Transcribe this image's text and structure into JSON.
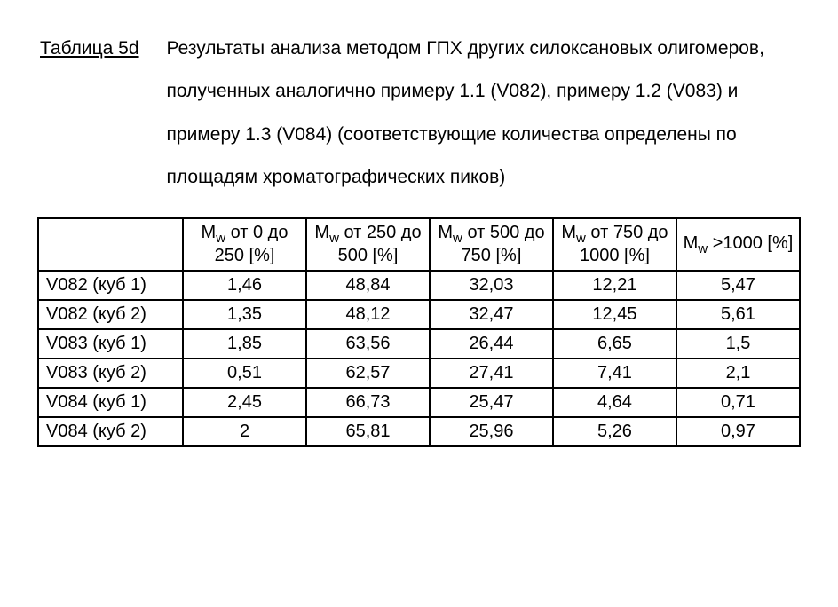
{
  "heading": {
    "label": "Таблица 5d",
    "text": "Результаты анализа методом ГПХ других силоксановых олигомеров, полученных аналогично примеру 1.1 (V082), примеру 1.2 (V083) и примеру 1.3 (V084) (соответствующие количества определены по площадям хроматографических пиков)"
  },
  "table": {
    "type": "table",
    "background_color": "#ffffff",
    "border_color": "#000000",
    "font_size_pt": 15,
    "columns": [
      {
        "key": "sample",
        "header_html": ""
      },
      {
        "key": "mw_0_250",
        "header_html": "M<sub>w</sub> от 0 до 250 [%]"
      },
      {
        "key": "mw_250_500",
        "header_html": "M<sub>w</sub> от 250 до 500 [%]"
      },
      {
        "key": "mw_500_750",
        "header_html": "M<sub>w</sub> от 500 до 750 [%]"
      },
      {
        "key": "mw_750_1000",
        "header_html": "M<sub>w</sub> от 750 до 1000 [%]"
      },
      {
        "key": "mw_gt_1000",
        "header_html": "M<sub>w</sub> >1000 [%]"
      }
    ],
    "rows": [
      {
        "sample": "V082 (куб 1)",
        "v": [
          "1,46",
          "48,84",
          "32,03",
          "12,21",
          "5,47"
        ]
      },
      {
        "sample": "V082 (куб 2)",
        "v": [
          "1,35",
          "48,12",
          "32,47",
          "12,45",
          "5,61"
        ]
      },
      {
        "sample": "V083 (куб 1)",
        "v": [
          "1,85",
          "63,56",
          "26,44",
          "6,65",
          "1,5"
        ]
      },
      {
        "sample": "V083 (куб 2)",
        "v": [
          "0,51",
          "62,57",
          "27,41",
          "7,41",
          "2,1"
        ]
      },
      {
        "sample": "V084 (куб 1)",
        "v": [
          "2,45",
          "66,73",
          "25,47",
          "4,64",
          "0,71"
        ]
      },
      {
        "sample": "V084 (куб 2)",
        "v": [
          "2",
          "65,81",
          "25,96",
          "5,26",
          "0,97"
        ]
      }
    ]
  }
}
